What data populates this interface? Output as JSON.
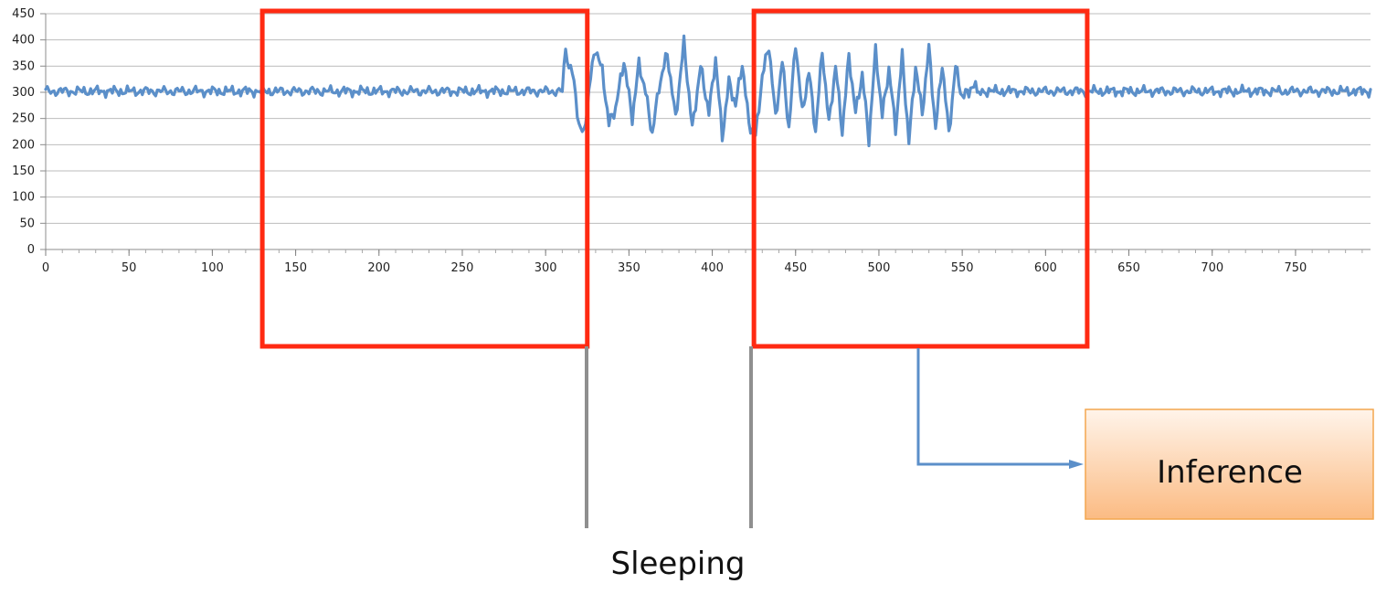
{
  "chart_data": {
    "type": "line",
    "title": "",
    "xlabel": "",
    "ylabel": "",
    "xlim": [
      0,
      795
    ],
    "ylim": [
      0,
      450
    ],
    "x_ticks": [
      0,
      50,
      100,
      150,
      200,
      250,
      300,
      350,
      400,
      450,
      500,
      550,
      600,
      650,
      700,
      750
    ],
    "x_tick_labels": [
      "0",
      "50",
      "100",
      "150",
      "200",
      "250",
      "300",
      "350",
      "400",
      "450",
      "500",
      "550",
      "600",
      "650",
      "700",
      "750"
    ],
    "y_ticks": [
      0,
      50,
      100,
      150,
      200,
      250,
      300,
      350,
      400,
      450
    ],
    "y_tick_labels": [
      "0",
      "50",
      "100",
      "150",
      "200",
      "250",
      "300",
      "350",
      "400",
      "450"
    ],
    "grid": "horizontal",
    "legend": "none",
    "series": [
      {
        "color": "#5b8fc9",
        "segments": [
          {
            "x_start": 0,
            "x_end": 310,
            "baseline": 302,
            "amplitude": 11,
            "description_level": "stable"
          },
          {
            "x_start": 310,
            "x_end": 420,
            "baseline": 300,
            "amplitude": 80,
            "description_level": "oscillating"
          },
          {
            "x_start": 420,
            "x_end": 560,
            "baseline": 300,
            "amplitude": 85,
            "description_level": "oscillating"
          },
          {
            "x_start": 560,
            "x_end": 795,
            "baseline": 302,
            "amplitude": 11,
            "description_level": "stable"
          }
        ],
        "anchor_points": [
          [
            0,
            290
          ],
          [
            5,
            310
          ],
          [
            12,
            295
          ],
          [
            20,
            312
          ],
          [
            30,
            293
          ],
          [
            45,
            308
          ],
          [
            60,
            298
          ],
          [
            80,
            311
          ],
          [
            100,
            296
          ],
          [
            120,
            309
          ],
          [
            140,
            293
          ],
          [
            160,
            310
          ],
          [
            180,
            300
          ],
          [
            200,
            312
          ],
          [
            220,
            296
          ],
          [
            240,
            309
          ],
          [
            260,
            295
          ],
          [
            280,
            310
          ],
          [
            300,
            300
          ],
          [
            308,
            305
          ],
          [
            312,
            370
          ],
          [
            316,
            340
          ],
          [
            320,
            240
          ],
          [
            323,
            218
          ],
          [
            327,
            330
          ],
          [
            330,
            385
          ],
          [
            334,
            340
          ],
          [
            338,
            240
          ],
          [
            342,
            270
          ],
          [
            347,
            360
          ],
          [
            352,
            250
          ],
          [
            356,
            355
          ],
          [
            360,
            300
          ],
          [
            364,
            220
          ],
          [
            368,
            310
          ],
          [
            373,
            375
          ],
          [
            378,
            250
          ],
          [
            383,
            395
          ],
          [
            388,
            230
          ],
          [
            393,
            350
          ],
          [
            398,
            260
          ],
          [
            402,
            365
          ],
          [
            406,
            215
          ],
          [
            410,
            320
          ],
          [
            414,
            275
          ],
          [
            418,
            355
          ],
          [
            422,
            240
          ],
          [
            426,
            215
          ],
          [
            430,
            330
          ],
          [
            434,
            390
          ],
          [
            438,
            250
          ],
          [
            442,
            360
          ],
          [
            446,
            230
          ],
          [
            450,
            395
          ],
          [
            454,
            260
          ],
          [
            458,
            340
          ],
          [
            462,
            225
          ],
          [
            466,
            380
          ],
          [
            470,
            240
          ],
          [
            474,
            350
          ],
          [
            478,
            225
          ],
          [
            482,
            370
          ],
          [
            486,
            260
          ],
          [
            490,
            335
          ],
          [
            494,
            210
          ],
          [
            498,
            380
          ],
          [
            502,
            255
          ],
          [
            506,
            345
          ],
          [
            510,
            230
          ],
          [
            514,
            370
          ],
          [
            518,
            205
          ],
          [
            522,
            350
          ],
          [
            526,
            260
          ],
          [
            530,
            385
          ],
          [
            534,
            230
          ],
          [
            538,
            355
          ],
          [
            542,
            220
          ],
          [
            546,
            350
          ],
          [
            550,
            290
          ],
          [
            556,
            310
          ],
          [
            570,
            300
          ],
          [
            590,
            310
          ],
          [
            610,
            296
          ],
          [
            630,
            308
          ],
          [
            650,
            299
          ],
          [
            670,
            311
          ],
          [
            690,
            296
          ],
          [
            710,
            309
          ],
          [
            730,
            300
          ],
          [
            750,
            310
          ],
          [
            770,
            298
          ],
          [
            790,
            305
          ],
          [
            795,
            296
          ]
        ]
      }
    ],
    "annotations": [
      {
        "type": "box",
        "x_start": 130,
        "x_end": 325,
        "label": ""
      },
      {
        "type": "box",
        "x_start": 425,
        "x_end": 625,
        "label": ""
      },
      {
        "type": "callout",
        "text": "Sleeping"
      },
      {
        "type": "callout",
        "text": "Inference"
      }
    ]
  },
  "ui": {
    "box_color": "#ff2a12",
    "arrow_color": "#5b8fc9",
    "leader_color": "#8f8f8f",
    "callout_fill_top": "#fff4ea",
    "callout_fill_bottom": "#fbbb83",
    "callout_border": "#f3a64f",
    "labels": {
      "sleeping": "Sleeping",
      "inference": "Inference"
    }
  }
}
